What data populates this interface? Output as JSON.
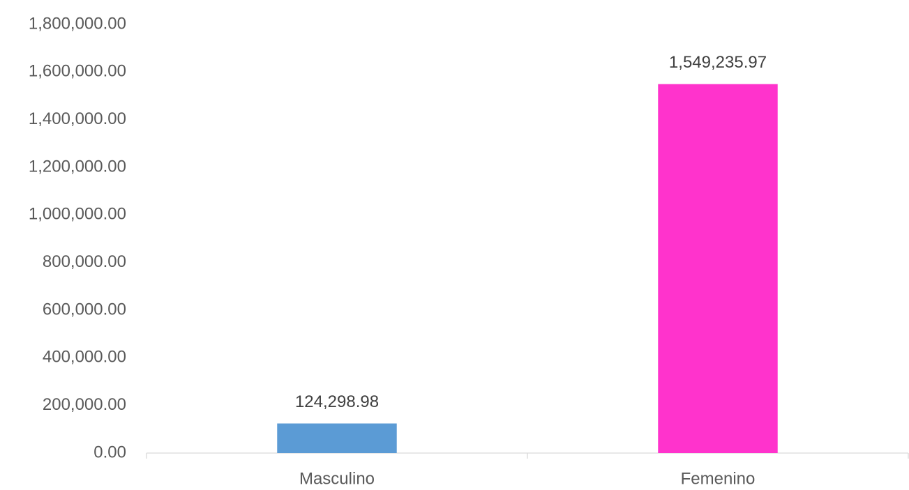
{
  "chart_data": {
    "type": "bar",
    "categories": [
      "Masculino",
      "Femenino"
    ],
    "values": [
      124298.98,
      1549235.97
    ],
    "value_labels": [
      "124,298.98",
      "1,549,235.97"
    ],
    "colors": [
      "#5b9bd5",
      "#ff33cc"
    ],
    "ylim": [
      0,
      1800000
    ],
    "yticks": [
      {
        "value": 0,
        "label": "0.00"
      },
      {
        "value": 200000,
        "label": "200,000.00"
      },
      {
        "value": 400000,
        "label": "400,000.00"
      },
      {
        "value": 600000,
        "label": "600,000.00"
      },
      {
        "value": 800000,
        "label": "800,000.00"
      },
      {
        "value": 1000000,
        "label": "1,000,000.00"
      },
      {
        "value": 1200000,
        "label": "1,200,000.00"
      },
      {
        "value": 1400000,
        "label": "1,400,000.00"
      },
      {
        "value": 1600000,
        "label": "1,600,000.00"
      },
      {
        "value": 1800000,
        "label": "1,800,000.00"
      }
    ],
    "grid": false
  }
}
